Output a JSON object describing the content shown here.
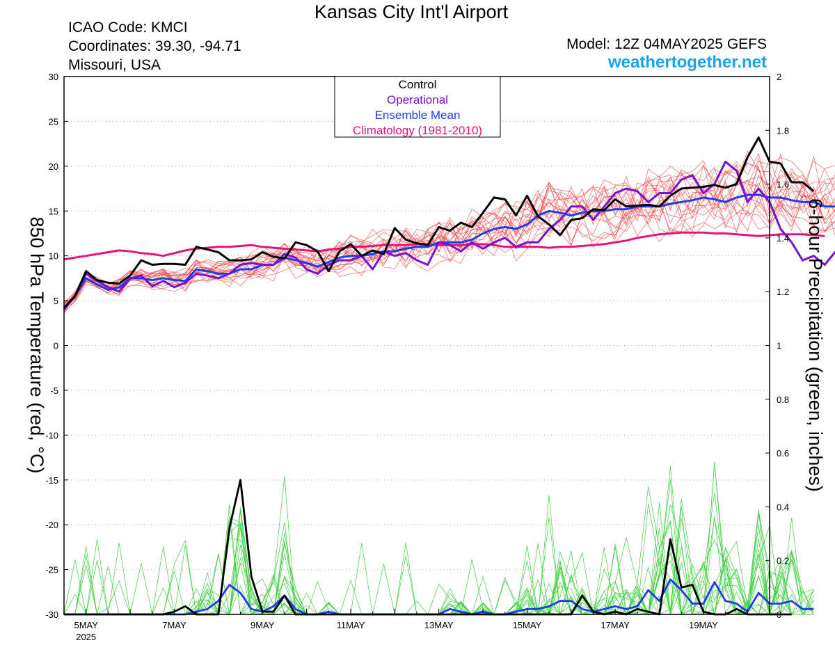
{
  "header": {
    "title": "Kansas City Int'l Airport",
    "icao": "ICAO Code: KMCI",
    "coordinates": "Coordinates: 39.30, -94.71",
    "location": "Missouri, USA",
    "model": "Model: 12Z 04MAY2025 GEFS",
    "site": "weathertogether.net"
  },
  "colors": {
    "control": "#000000",
    "operational": "#7b10d0",
    "mean": "#1f3bf0",
    "climatology": "#e6147a",
    "members_temp": "#f04040",
    "members_precip": "#40d040",
    "site": "#1aa3f0"
  },
  "chart_data": {
    "type": "line",
    "title": "",
    "y_left_label": "850 hPa Temperature (red, °C)",
    "y_right_label": "6-hour Precipitation (green, inches)",
    "y_left_range": [
      -30,
      30
    ],
    "y_left_ticks": [
      30,
      25,
      20,
      15,
      10,
      5,
      0,
      -5,
      -10,
      -15,
      -20,
      -25,
      -30
    ],
    "y_right_range": [
      0,
      2
    ],
    "y_right_ticks": [
      "2",
      "1.8",
      "1.6",
      "1.4",
      "1.2",
      "1",
      "0.8",
      "0.6",
      "0.4",
      "0.2",
      "0"
    ],
    "x_range_days": [
      0,
      16
    ],
    "x_ticks": [
      {
        "day": 0.5,
        "label": "5MAY",
        "sub": "2025"
      },
      {
        "day": 2.5,
        "label": "7MAY"
      },
      {
        "day": 4.5,
        "label": "9MAY"
      },
      {
        "day": 6.5,
        "label": "11MAY"
      },
      {
        "day": 8.5,
        "label": "13MAY"
      },
      {
        "day": 10.5,
        "label": "15MAY"
      },
      {
        "day": 12.5,
        "label": "17MAY"
      },
      {
        "day": 14.5,
        "label": "19MAY"
      }
    ],
    "grid": "dotted horizontal",
    "legend_position": "top-center",
    "legend": [
      "Control",
      "Operational",
      "Ensemble Mean",
      "Climatology (1981-2010)"
    ],
    "step_days": 0.25,
    "temperature": {
      "control": [
        4.2,
        5.5,
        8.3,
        7.3,
        7.0,
        6.9,
        7.8,
        9.5,
        9.0,
        9.1,
        9.1,
        9.0,
        11.0,
        10.7,
        10.4,
        9.5,
        9.5,
        9.6,
        10.4,
        9.9,
        9.7,
        11.5,
        11.2,
        10.5,
        8.3,
        10.5,
        11.3,
        10.0,
        10.6,
        10.2,
        13.1,
        11.8,
        11.4,
        11.2,
        13.2,
        12.8,
        13.7,
        13.2,
        14.8,
        16.5,
        16.3,
        14.5,
        16.7,
        14.4,
        13.5,
        12.3,
        14.0,
        14.2,
        15.2,
        15.1,
        16.3,
        15.5,
        15.6,
        15.7,
        15.5,
        16.7,
        17.5,
        17.6,
        17.7,
        17.9,
        17.6,
        18.0,
        21.0,
        23.2,
        20.5,
        20.3,
        18.2,
        18.2,
        17.2
      ],
      "operational": [
        4.0,
        5.5,
        8.0,
        7.2,
        6.5,
        6.0,
        7.5,
        7.8,
        6.6,
        7.2,
        6.5,
        7.0,
        8.0,
        7.8,
        7.5,
        8.0,
        9.0,
        9.2,
        9.0,
        9.0,
        10.2,
        9.8,
        8.5,
        8.0,
        9.0,
        9.5,
        9.5,
        10.0,
        8.5,
        10.5,
        10.0,
        10.3,
        9.5,
        9.0,
        11.5,
        11.2,
        10.5,
        11.5,
        10.8,
        11.5,
        12.0,
        11.0,
        11.5,
        11.5,
        13.0,
        14.0,
        15.5,
        15.5,
        14.0,
        15.5,
        17.0,
        17.5,
        17.2,
        16.0,
        17.0,
        17.0,
        18.5,
        19.0,
        17.0,
        18.0,
        20.5,
        19.5,
        16.0,
        17.5,
        16.0,
        13.0,
        11.5,
        9.5,
        10.0,
        9.0,
        10.5,
        10.5,
        9.0,
        8.5,
        7.8,
        8.2,
        11.0,
        11.0,
        11.5
      ],
      "mean": [
        4.2,
        5.5,
        7.5,
        6.8,
        6.2,
        6.5,
        7.5,
        7.5,
        7.3,
        7.5,
        7.3,
        7.2,
        8.5,
        8.3,
        8.0,
        8.0,
        8.5,
        8.5,
        9.0,
        9.0,
        9.8,
        9.5,
        9.2,
        8.8,
        9.3,
        9.8,
        10.0,
        10.0,
        10.2,
        10.5,
        10.5,
        10.8,
        11.0,
        11.0,
        11.5,
        11.5,
        11.5,
        11.8,
        12.5,
        13.0,
        13.2,
        13.0,
        13.5,
        14.5,
        15.0,
        14.8,
        14.5,
        14.8,
        15.0,
        15.0,
        15.2,
        15.2,
        15.5,
        15.5,
        15.5,
        15.8,
        16.0,
        16.2,
        16.5,
        16.3,
        16.0,
        16.5,
        16.8,
        16.8,
        16.5,
        16.5,
        16.2,
        16.0,
        16.0,
        15.5,
        15.5,
        15.2,
        15.2,
        15.0,
        15.0,
        15.0,
        15.2,
        15.3,
        15.2
      ],
      "climatology": [
        9.6,
        9.8,
        10.0,
        10.2,
        10.4,
        10.6,
        10.5,
        10.3,
        10.2,
        10.0,
        10.3,
        10.6,
        10.8,
        10.9,
        11.0,
        11.0,
        11.1,
        11.2,
        11.0,
        10.9,
        10.8,
        10.7,
        10.6,
        10.5,
        10.7,
        10.8,
        11.0,
        11.0,
        11.1,
        11.2,
        11.2,
        11.2,
        11.3,
        11.3,
        11.2,
        11.2,
        11.2,
        11.3,
        11.3,
        11.2,
        11.0,
        11.0,
        11.0,
        11.0,
        10.9,
        11.0,
        11.0,
        11.1,
        11.2,
        11.3,
        11.5,
        11.7,
        12.0,
        12.2,
        12.4,
        12.5,
        12.6,
        12.6,
        12.6,
        12.5,
        12.5,
        12.4,
        12.3,
        12.2,
        12.3,
        12.4,
        12.4,
        12.4,
        12.3,
        12.2
      ]
    },
    "precipitation": {
      "control": [
        0,
        0,
        0,
        0,
        0,
        0,
        0,
        0,
        0,
        0,
        0.01,
        0.03,
        0,
        0,
        0,
        0.32,
        0.5,
        0.14,
        0.01,
        0.01,
        0.07,
        0,
        0,
        0,
        0,
        0,
        0,
        0,
        0,
        0,
        0,
        0,
        0,
        0,
        0,
        0,
        0,
        0,
        0,
        0,
        0,
        0,
        0,
        0,
        0,
        0,
        0,
        0.07,
        0.01,
        0,
        0.01,
        0,
        0.02,
        0.01,
        0,
        0.28,
        0.1,
        0.11,
        0.01,
        0,
        0,
        0.02,
        0,
        0,
        0,
        0,
        0
      ],
      "mean": [
        0,
        0,
        0,
        0,
        0,
        0,
        0,
        0,
        0,
        0,
        0,
        0,
        0.01,
        0.02,
        0.05,
        0.11,
        0.08,
        0.02,
        0.01,
        0.03,
        0.07,
        0.02,
        0,
        0,
        0.01,
        0,
        0,
        0,
        0,
        0,
        0,
        0,
        0,
        0,
        0,
        0.02,
        0.01,
        0,
        0.01,
        0,
        0,
        0.01,
        0.02,
        0.02,
        0.03,
        0.05,
        0.05,
        0.02,
        0.01,
        0.02,
        0.03,
        0.02,
        0.03,
        0.09,
        0.05,
        0.13,
        0.09,
        0.04,
        0.04,
        0.12,
        0.05,
        0.04,
        0.01,
        0.08,
        0.04,
        0.04,
        0.05,
        0.02,
        0.02
      ]
    }
  }
}
